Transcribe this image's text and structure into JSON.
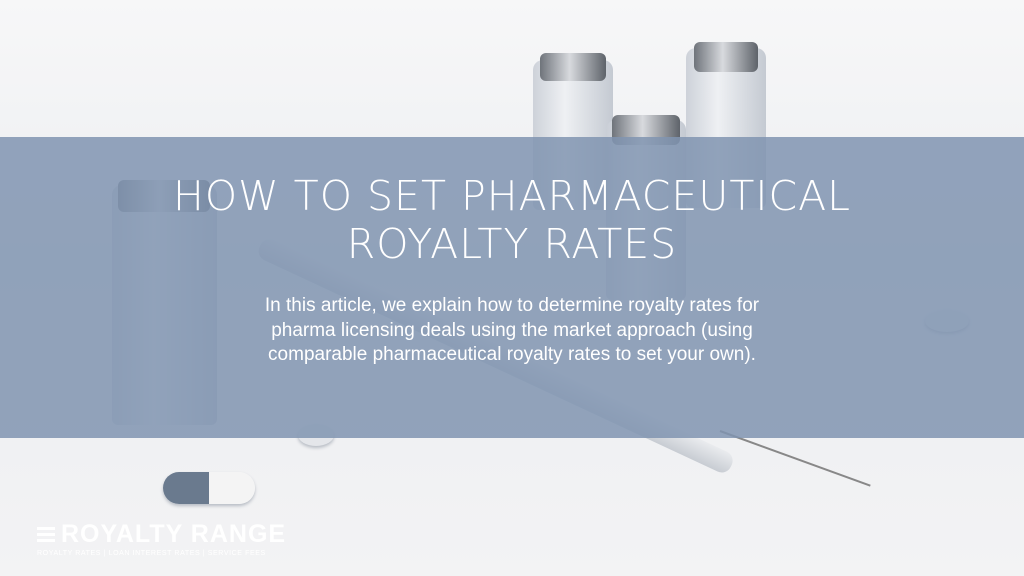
{
  "hero": {
    "title_line1": "HOW TO SET PHARMACEUTICAL",
    "title_line2": "ROYALTY RATES",
    "description": "In this article, we explain how to determine royalty rates for pharma licensing deals using the market approach (using comparable pharmaceutical royalty rates to set your own).",
    "banner_color": "#8094b0"
  },
  "logo": {
    "name": "ROYALTY RANGE",
    "tagline": "ROYALTY RATES | LOAN INTEREST RATES | SERVICE FEES"
  }
}
